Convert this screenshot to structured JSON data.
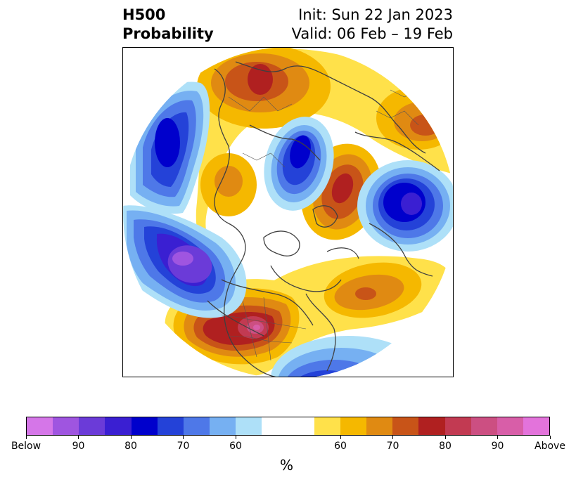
{
  "title": {
    "left_line1": "H500",
    "left_line2": "Probability",
    "right_line1": "Init: Sun 22 Jan 2023",
    "right_line2": "Valid: 06 Feb – 19 Feb"
  },
  "map": {
    "projection": "north-polar-stereographic",
    "features": [
      {
        "name": "blue-anomaly-north-pacific",
        "kind": "below",
        "peak": "90"
      },
      {
        "name": "blue-anomaly-west-coast",
        "kind": "below",
        "peak": "Below"
      },
      {
        "name": "blue-anomaly-siberia",
        "kind": "below",
        "peak": "80"
      },
      {
        "name": "blue-anomaly-greenland-sea",
        "kind": "below",
        "peak": "90"
      },
      {
        "name": "blue-anomaly-atlantic-south",
        "kind": "below",
        "peak": "70"
      },
      {
        "name": "red-anomaly-eastern-us",
        "kind": "above",
        "peak": "90"
      },
      {
        "name": "red-anomaly-india-tibet",
        "kind": "above",
        "peak": "80"
      },
      {
        "name": "red-anomaly-arctic-scandinavia",
        "kind": "above",
        "peak": "80"
      },
      {
        "name": "orange-anomaly-atlantic",
        "kind": "above",
        "peak": "70"
      }
    ]
  },
  "colorbar": {
    "colors": [
      "#d576e8",
      "#9f55e0",
      "#6b3bd8",
      "#3a1fd2",
      "#0000cc",
      "#2442d8",
      "#4e78e8",
      "#76b0f2",
      "#aee0f8",
      "#ffffff",
      "#ffffff",
      "#ffe14a",
      "#f5b800",
      "#e08a12",
      "#c85418",
      "#b02020",
      "#c23a52",
      "#cc4f82",
      "#d85ea8",
      "#e373db"
    ],
    "tick_labels": [
      "Below",
      "90",
      "80",
      "70",
      "60",
      "60",
      "70",
      "80",
      "90",
      "Above"
    ],
    "tick_fractions": [
      0.0,
      0.1,
      0.2,
      0.3,
      0.4,
      0.6,
      0.7,
      0.8,
      0.9,
      1.0
    ],
    "unit": "%"
  }
}
